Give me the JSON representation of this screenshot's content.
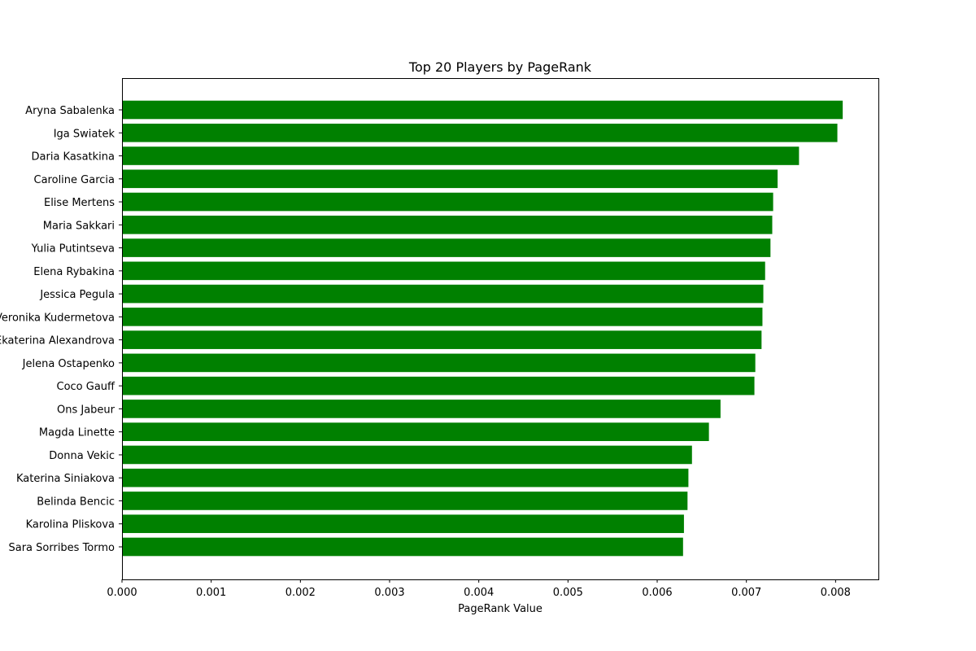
{
  "chart_data": {
    "type": "bar",
    "orientation": "horizontal",
    "title": "Top 20 Players by PageRank",
    "xlabel": "PageRank Value",
    "ylabel": "",
    "xlim": [
      0,
      0.00848
    ],
    "xticks": [
      "0.000",
      "0.001",
      "0.002",
      "0.003",
      "0.004",
      "0.005",
      "0.006",
      "0.007",
      "0.008"
    ],
    "grid": false,
    "bar_color": "#008000",
    "categories": [
      "Aryna Sabalenka",
      "Iga Swiatek",
      "Daria Kasatkina",
      "Caroline Garcia",
      "Elise Mertens",
      "Maria Sakkari",
      "Yulia Putintseva",
      "Elena Rybakina",
      "Jessica Pegula",
      "Veronika Kudermetova",
      "Ekaterina Alexandrova",
      "Jelena Ostapenko",
      "Coco Gauff",
      "Ons Jabeur",
      "Magda Linette",
      "Donna Vekic",
      "Katerina Siniakova",
      "Belinda Bencic",
      "Karolina Pliskova",
      "Sara Sorribes Tormo"
    ],
    "values": [
      0.00808,
      0.00802,
      0.00759,
      0.00735,
      0.0073,
      0.00729,
      0.00727,
      0.00721,
      0.00719,
      0.00718,
      0.00717,
      0.0071,
      0.00709,
      0.00671,
      0.00658,
      0.00639,
      0.00635,
      0.00634,
      0.0063,
      0.00629
    ]
  }
}
